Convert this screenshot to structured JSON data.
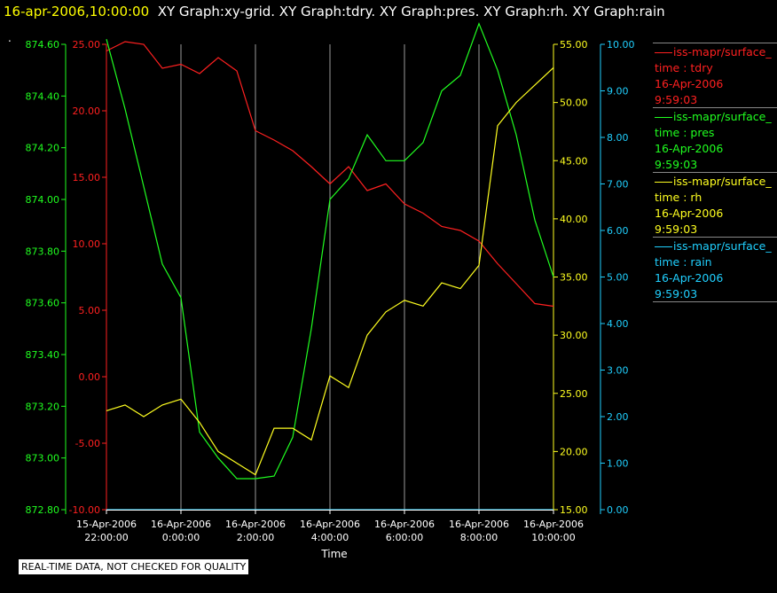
{
  "header": {
    "time": "16-apr-2006,10:00:00",
    "graphs": "XY Graph:xy-grid.  XY Graph:tdry.  XY Graph:pres.  XY Graph:rh.  XY Graph:rain"
  },
  "dot": ".",
  "quality_note": "REAL-TIME DATA, NOT CHECKED FOR QUALITY",
  "legend": [
    {
      "source": "iss-mapr/surface_",
      "label": "time : tdry",
      "date": "16-Apr-2006",
      "time": "9:59:03",
      "color": "#ff2020"
    },
    {
      "source": "iss-mapr/surface_",
      "label": "time : pres",
      "date": "16-Apr-2006",
      "time": "9:59:03",
      "color": "#20ff20"
    },
    {
      "source": "iss-mapr/surface_",
      "label": "time : rh",
      "date": "16-Apr-2006",
      "time": "9:59:03",
      "color": "#ffff20"
    },
    {
      "source": "iss-mapr/surface_",
      "label": "time : rain",
      "date": "16-Apr-2006",
      "time": "9:59:03",
      "color": "#20d0ff"
    }
  ],
  "chart_data": {
    "type": "line",
    "xlabel": "Time",
    "xlim": [
      "2006-04-15 22:00",
      "2006-04-16 10:00"
    ],
    "x_ticks": [
      {
        "line1": "15-Apr-2006",
        "line2": "22:00:00"
      },
      {
        "line1": "16-Apr-2006",
        "line2": "0:00:00"
      },
      {
        "line1": "16-Apr-2006",
        "line2": "2:00:00"
      },
      {
        "line1": "16-Apr-2006",
        "line2": "4:00:00"
      },
      {
        "line1": "16-Apr-2006",
        "line2": "6:00:00"
      },
      {
        "line1": "16-Apr-2006",
        "line2": "8:00:00"
      },
      {
        "line1": "16-Apr-2006",
        "line2": "10:00:00"
      }
    ],
    "grid": true,
    "axes": [
      {
        "name": "pres",
        "side": "left-outer",
        "color": "#20ff20",
        "ylim": [
          872.8,
          874.6
        ],
        "ticks": [
          "872.80",
          "873.00",
          "873.20",
          "873.40",
          "873.60",
          "873.80",
          "874.00",
          "874.20",
          "874.40",
          "874.60"
        ]
      },
      {
        "name": "tdry",
        "side": "left-inner",
        "color": "#ff2020",
        "ylim": [
          -10,
          25
        ],
        "ticks": [
          "-10.00",
          "-5.00",
          "0.00",
          "5.00",
          "10.00",
          "15.00",
          "20.00",
          "25.00"
        ]
      },
      {
        "name": "rh",
        "side": "right-inner",
        "color": "#ffff20",
        "ylim": [
          15,
          55
        ],
        "ticks": [
          "15.00",
          "20.00",
          "25.00",
          "30.00",
          "35.00",
          "40.00",
          "45.00",
          "50.00",
          "55.00"
        ]
      },
      {
        "name": "rain",
        "side": "right-outer",
        "color": "#20d0ff",
        "ylim": [
          0,
          10
        ],
        "ticks": [
          "0.00",
          "1.00",
          "2.00",
          "3.00",
          "4.00",
          "5.00",
          "6.00",
          "7.00",
          "8.00",
          "9.00",
          "10.00"
        ]
      }
    ],
    "series": [
      {
        "name": "tdry",
        "axis": "tdry",
        "color": "#ff2020",
        "x": [
          "2006-04-15 22:00",
          "2006-04-15 22:30",
          "2006-04-15 23:00",
          "2006-04-15 23:30",
          "2006-04-16 00:00",
          "2006-04-16 00:30",
          "2006-04-16 01:00",
          "2006-04-16 01:30",
          "2006-04-16 02:00",
          "2006-04-16 02:30",
          "2006-04-16 03:00",
          "2006-04-16 03:30",
          "2006-04-16 04:00",
          "2006-04-16 04:30",
          "2006-04-16 05:00",
          "2006-04-16 05:30",
          "2006-04-16 06:00",
          "2006-04-16 06:30",
          "2006-04-16 07:00",
          "2006-04-16 07:30",
          "2006-04-16 08:00",
          "2006-04-16 08:30",
          "2006-04-16 09:00",
          "2006-04-16 09:30",
          "2006-04-16 10:00"
        ],
        "y": [
          24.5,
          25.2,
          25.0,
          23.2,
          23.5,
          22.8,
          24.0,
          23.0,
          18.5,
          17.8,
          17.0,
          15.8,
          14.5,
          15.8,
          14.0,
          14.5,
          13.0,
          12.3,
          11.3,
          11.0,
          10.2,
          8.5,
          7.0,
          5.5,
          5.3
        ]
      },
      {
        "name": "pres",
        "axis": "pres",
        "color": "#20ff20",
        "x": [
          "2006-04-15 22:00",
          "2006-04-15 22:30",
          "2006-04-15 23:00",
          "2006-04-15 23:30",
          "2006-04-16 00:00",
          "2006-04-16 00:30",
          "2006-04-16 01:00",
          "2006-04-16 01:30",
          "2006-04-16 02:00",
          "2006-04-16 02:30",
          "2006-04-16 03:00",
          "2006-04-16 03:30",
          "2006-04-16 04:00",
          "2006-04-16 04:30",
          "2006-04-16 05:00",
          "2006-04-16 05:30",
          "2006-04-16 06:00",
          "2006-04-16 06:30",
          "2006-04-16 07:00",
          "2006-04-16 07:30",
          "2006-04-16 08:00",
          "2006-04-16 08:30",
          "2006-04-16 09:00",
          "2006-04-16 09:30",
          "2006-04-16 10:00"
        ],
        "y": [
          874.62,
          874.35,
          874.05,
          873.75,
          873.62,
          873.1,
          873.0,
          872.92,
          872.92,
          872.93,
          873.08,
          873.5,
          874.0,
          874.08,
          874.25,
          874.15,
          874.15,
          874.22,
          874.42,
          874.48,
          874.68,
          874.5,
          874.25,
          873.92,
          873.7
        ]
      },
      {
        "name": "rh",
        "axis": "rh",
        "color": "#ffff20",
        "x": [
          "2006-04-15 22:00",
          "2006-04-15 22:30",
          "2006-04-15 23:00",
          "2006-04-15 23:30",
          "2006-04-16 00:00",
          "2006-04-16 00:30",
          "2006-04-16 01:00",
          "2006-04-16 01:30",
          "2006-04-16 02:00",
          "2006-04-16 02:30",
          "2006-04-16 03:00",
          "2006-04-16 03:30",
          "2006-04-16 04:00",
          "2006-04-16 04:30",
          "2006-04-16 05:00",
          "2006-04-16 05:30",
          "2006-04-16 06:00",
          "2006-04-16 06:30",
          "2006-04-16 07:00",
          "2006-04-16 07:30",
          "2006-04-16 08:00",
          "2006-04-16 08:30",
          "2006-04-16 09:00",
          "2006-04-16 09:30",
          "2006-04-16 10:00"
        ],
        "y": [
          23.5,
          24.0,
          23.0,
          24.0,
          24.5,
          22.5,
          20.0,
          19.0,
          18.0,
          22.0,
          22.0,
          21.0,
          26.5,
          25.5,
          30.0,
          32.0,
          33.0,
          32.5,
          34.5,
          34.0,
          36.0,
          48.0,
          50.0,
          51.5,
          53.0
        ]
      },
      {
        "name": "rain",
        "axis": "rain",
        "color": "#20d0ff",
        "x": [
          "2006-04-15 22:00",
          "2006-04-16 10:00"
        ],
        "y": [
          0.0,
          0.0
        ]
      }
    ]
  }
}
